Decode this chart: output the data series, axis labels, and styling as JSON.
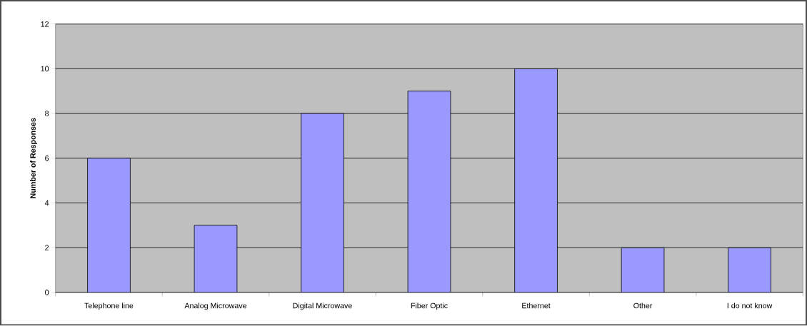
{
  "chart_data": {
    "type": "bar",
    "ylabel": "Number of Responses",
    "categories": [
      "Telephone line",
      "Analog Microwave",
      "Digital Microwave",
      "Fiber Optic",
      "Ethernet",
      "Other",
      "I do not know"
    ],
    "values": [
      6,
      3,
      8,
      9,
      10,
      2,
      2
    ],
    "color": "#9999ff",
    "ylim": [
      0,
      12
    ],
    "yticks": [
      0,
      2,
      4,
      6,
      8,
      10,
      12
    ],
    "grid": "y"
  }
}
